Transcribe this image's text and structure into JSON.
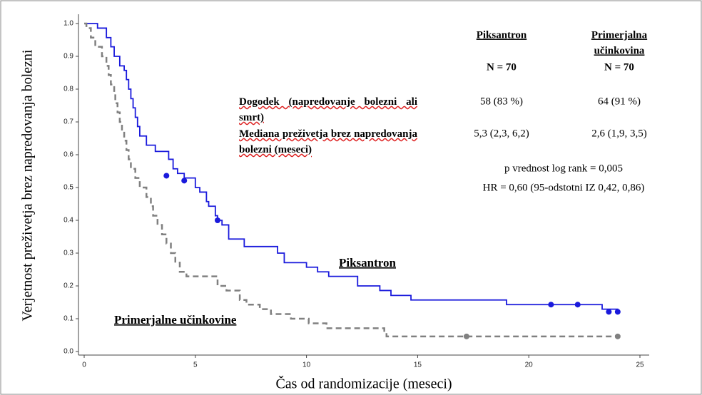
{
  "chart_data": {
    "type": "step",
    "x_label": "Čas od randomizacije (meseci)",
    "y_label": "Verjetnost preživetja brez napredovanja bolezni",
    "xlim": [
      0,
      25
    ],
    "xticks": [
      0,
      5,
      10,
      15,
      20,
      25
    ],
    "ylim": [
      0,
      1
    ],
    "yticks": [
      {
        "value": 0,
        "label": "0.0"
      },
      0.1,
      0.2,
      0.3,
      0.4,
      0.5,
      0.6,
      0.7,
      0.8,
      0.9,
      {
        "value": 1,
        "label": "1.0"
      }
    ],
    "series": [
      {
        "name": "Piksantron",
        "color": "#1a1adc",
        "dash": false,
        "x": [
          0,
          0.6,
          1.0,
          1.2,
          1.35,
          1.6,
          1.8,
          1.9,
          2.0,
          2.1,
          2.2,
          2.3,
          2.4,
          2.5,
          2.8,
          3.2,
          3.8,
          4.0,
          4.2,
          4.5,
          5.0,
          5.2,
          5.5,
          5.6,
          5.9,
          6.0,
          6.2,
          6.5,
          7.2,
          8.7,
          9.0,
          10.0,
          10.5,
          11.0,
          12.3,
          13.3,
          13.8,
          14.7,
          19.0,
          23.3,
          24.0
        ],
        "values": [
          1.0,
          0.986,
          0.957,
          0.929,
          0.9,
          0.871,
          0.857,
          0.829,
          0.8,
          0.771,
          0.743,
          0.714,
          0.686,
          0.657,
          0.629,
          0.61,
          0.586,
          0.557,
          0.543,
          0.529,
          0.5,
          0.486,
          0.457,
          0.443,
          0.414,
          0.4,
          0.386,
          0.343,
          0.32,
          0.3,
          0.271,
          0.257,
          0.243,
          0.229,
          0.2,
          0.186,
          0.171,
          0.157,
          0.143,
          0.129,
          0.121
        ],
        "censored": {
          "x": [
            3.7,
            4.5,
            6.0,
            21.0,
            22.2,
            23.6,
            24.0
          ],
          "values": [
            0.536,
            0.521,
            0.4,
            0.143,
            0.143,
            0.121,
            0.121
          ]
        }
      },
      {
        "name": "Primerjalne učinkovine",
        "color": "#808080",
        "dash": true,
        "x": [
          0,
          0.1,
          0.3,
          0.5,
          0.8,
          1.0,
          1.1,
          1.2,
          1.35,
          1.4,
          1.5,
          1.6,
          1.7,
          1.8,
          1.9,
          2.0,
          2.1,
          2.3,
          2.5,
          2.8,
          3.0,
          3.1,
          3.3,
          3.5,
          3.7,
          3.9,
          4.1,
          4.3,
          4.6,
          6.0,
          6.4,
          7.0,
          7.3,
          7.9,
          8.4,
          9.3,
          10.1,
          10.9,
          13.5,
          13.6,
          24.0
        ],
        "values": [
          1.0,
          0.986,
          0.957,
          0.929,
          0.9,
          0.871,
          0.843,
          0.814,
          0.786,
          0.757,
          0.729,
          0.7,
          0.671,
          0.643,
          0.614,
          0.586,
          0.557,
          0.529,
          0.5,
          0.471,
          0.443,
          0.414,
          0.386,
          0.357,
          0.329,
          0.3,
          0.271,
          0.243,
          0.229,
          0.2,
          0.186,
          0.157,
          0.143,
          0.129,
          0.114,
          0.1,
          0.086,
          0.071,
          0.057,
          0.046,
          0.046
        ],
        "censored": {
          "x": [
            17.2,
            24.0
          ],
          "values": [
            0.046,
            0.046
          ]
        }
      }
    ],
    "table": {
      "header": [
        {
          "name": "Piksantron",
          "n": "N = 70"
        },
        {
          "name": [
            "Primerjalna",
            "učinkovina"
          ],
          "n": "N = 70"
        }
      ],
      "rows": [
        [
          "Dogodek (napredovanje bolezni ali smrt)",
          "58 (83 %)",
          "64 (91 %)"
        ],
        [
          "Mediana preživetja brez napredovanja bolezni (meseci)",
          "5,3 (2,3, 6,2)",
          "2,6 (1,9, 3,5)"
        ]
      ]
    },
    "annotations": [
      "p vrednost log rank = 0,005",
      "HR = 0,60 (95-odstotni IZ 0,42, 0,86)"
    ]
  }
}
